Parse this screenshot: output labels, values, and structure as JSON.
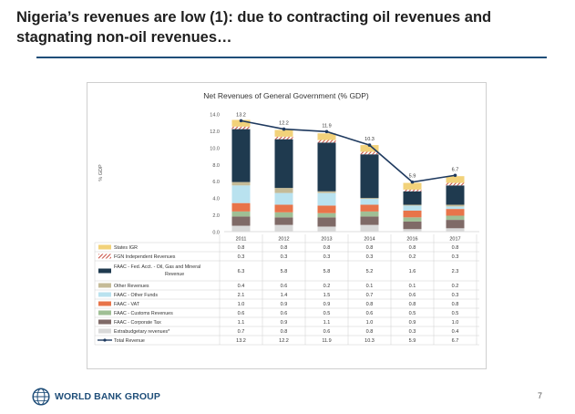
{
  "slide": {
    "title_line1": "Nigeria’s revenues are low (1): due to contracting oil revenues and",
    "title_line2": "stagnating non-oil revenues…",
    "page_number": "7",
    "logo_text": "WORLD BANK GROUP"
  },
  "chart_data": {
    "type": "bar",
    "stacked": true,
    "title": "Net Revenues of General Government (% GDP)",
    "ylabel": "% GDP",
    "ylim": [
      0,
      14
    ],
    "yticks": [
      "0.0",
      "2.0",
      "4.0",
      "6.0",
      "8.0",
      "10.0",
      "12.0",
      "14.0"
    ],
    "categories": [
      "2011",
      "2012",
      "2013",
      "2014",
      "2016",
      "2017"
    ],
    "series": [
      {
        "name": "Extrabudgetary revenues*",
        "color": "#d9d9d9",
        "values": [
          "0.7",
          "0.8",
          "0.6",
          "0.8",
          "0.3",
          "0.4"
        ]
      },
      {
        "name": "FAAC - Corporate Tax",
        "color": "#7f6a67",
        "values": [
          "1.1",
          "0.9",
          "1.1",
          "1.0",
          "0.9",
          "1.0"
        ]
      },
      {
        "name": "FAAC - Customs Revenues",
        "color": "#9fbf95",
        "values": [
          "0.6",
          "0.6",
          "0.5",
          "0.6",
          "0.5",
          "0.5"
        ]
      },
      {
        "name": "FAAC - VAT",
        "color": "#e8744a",
        "values": [
          "1.0",
          "0.9",
          "0.9",
          "0.8",
          "0.8",
          "0.8"
        ]
      },
      {
        "name": "FAAC - Other Funds",
        "color": "#b9e2ef",
        "values": [
          "2.1",
          "1.4",
          "1.5",
          "0.7",
          "0.6",
          "0.3"
        ]
      },
      {
        "name": "Other Revenues",
        "color": "#c5bb97",
        "values": [
          "0.4",
          "0.6",
          "0.2",
          "0.1",
          "0.1",
          "0.2"
        ]
      },
      {
        "name": "FAAC - Fed. Acct. - Oil, Gas and Mineral Revenue",
        "color": "#1f3a4f",
        "values": [
          "6.3",
          "5.8",
          "5.8",
          "5.2",
          "1.6",
          "2.3"
        ]
      },
      {
        "name": "FGN Independent Revenues",
        "color": "#c0392b",
        "pattern": "hatch",
        "values": [
          "0.3",
          "0.3",
          "0.3",
          "0.3",
          "0.2",
          "0.3"
        ]
      },
      {
        "name": "States IGR",
        "color": "#f2d27a",
        "values": [
          "0.8",
          "0.8",
          "0.8",
          "0.8",
          "0.8",
          "0.8"
        ]
      }
    ],
    "total": {
      "name": "Total Revenue",
      "color": "#1f3a5f",
      "values": [
        "13.2",
        "12.2",
        "11.9",
        "10.3",
        "5.9",
        "6.7"
      ]
    }
  }
}
